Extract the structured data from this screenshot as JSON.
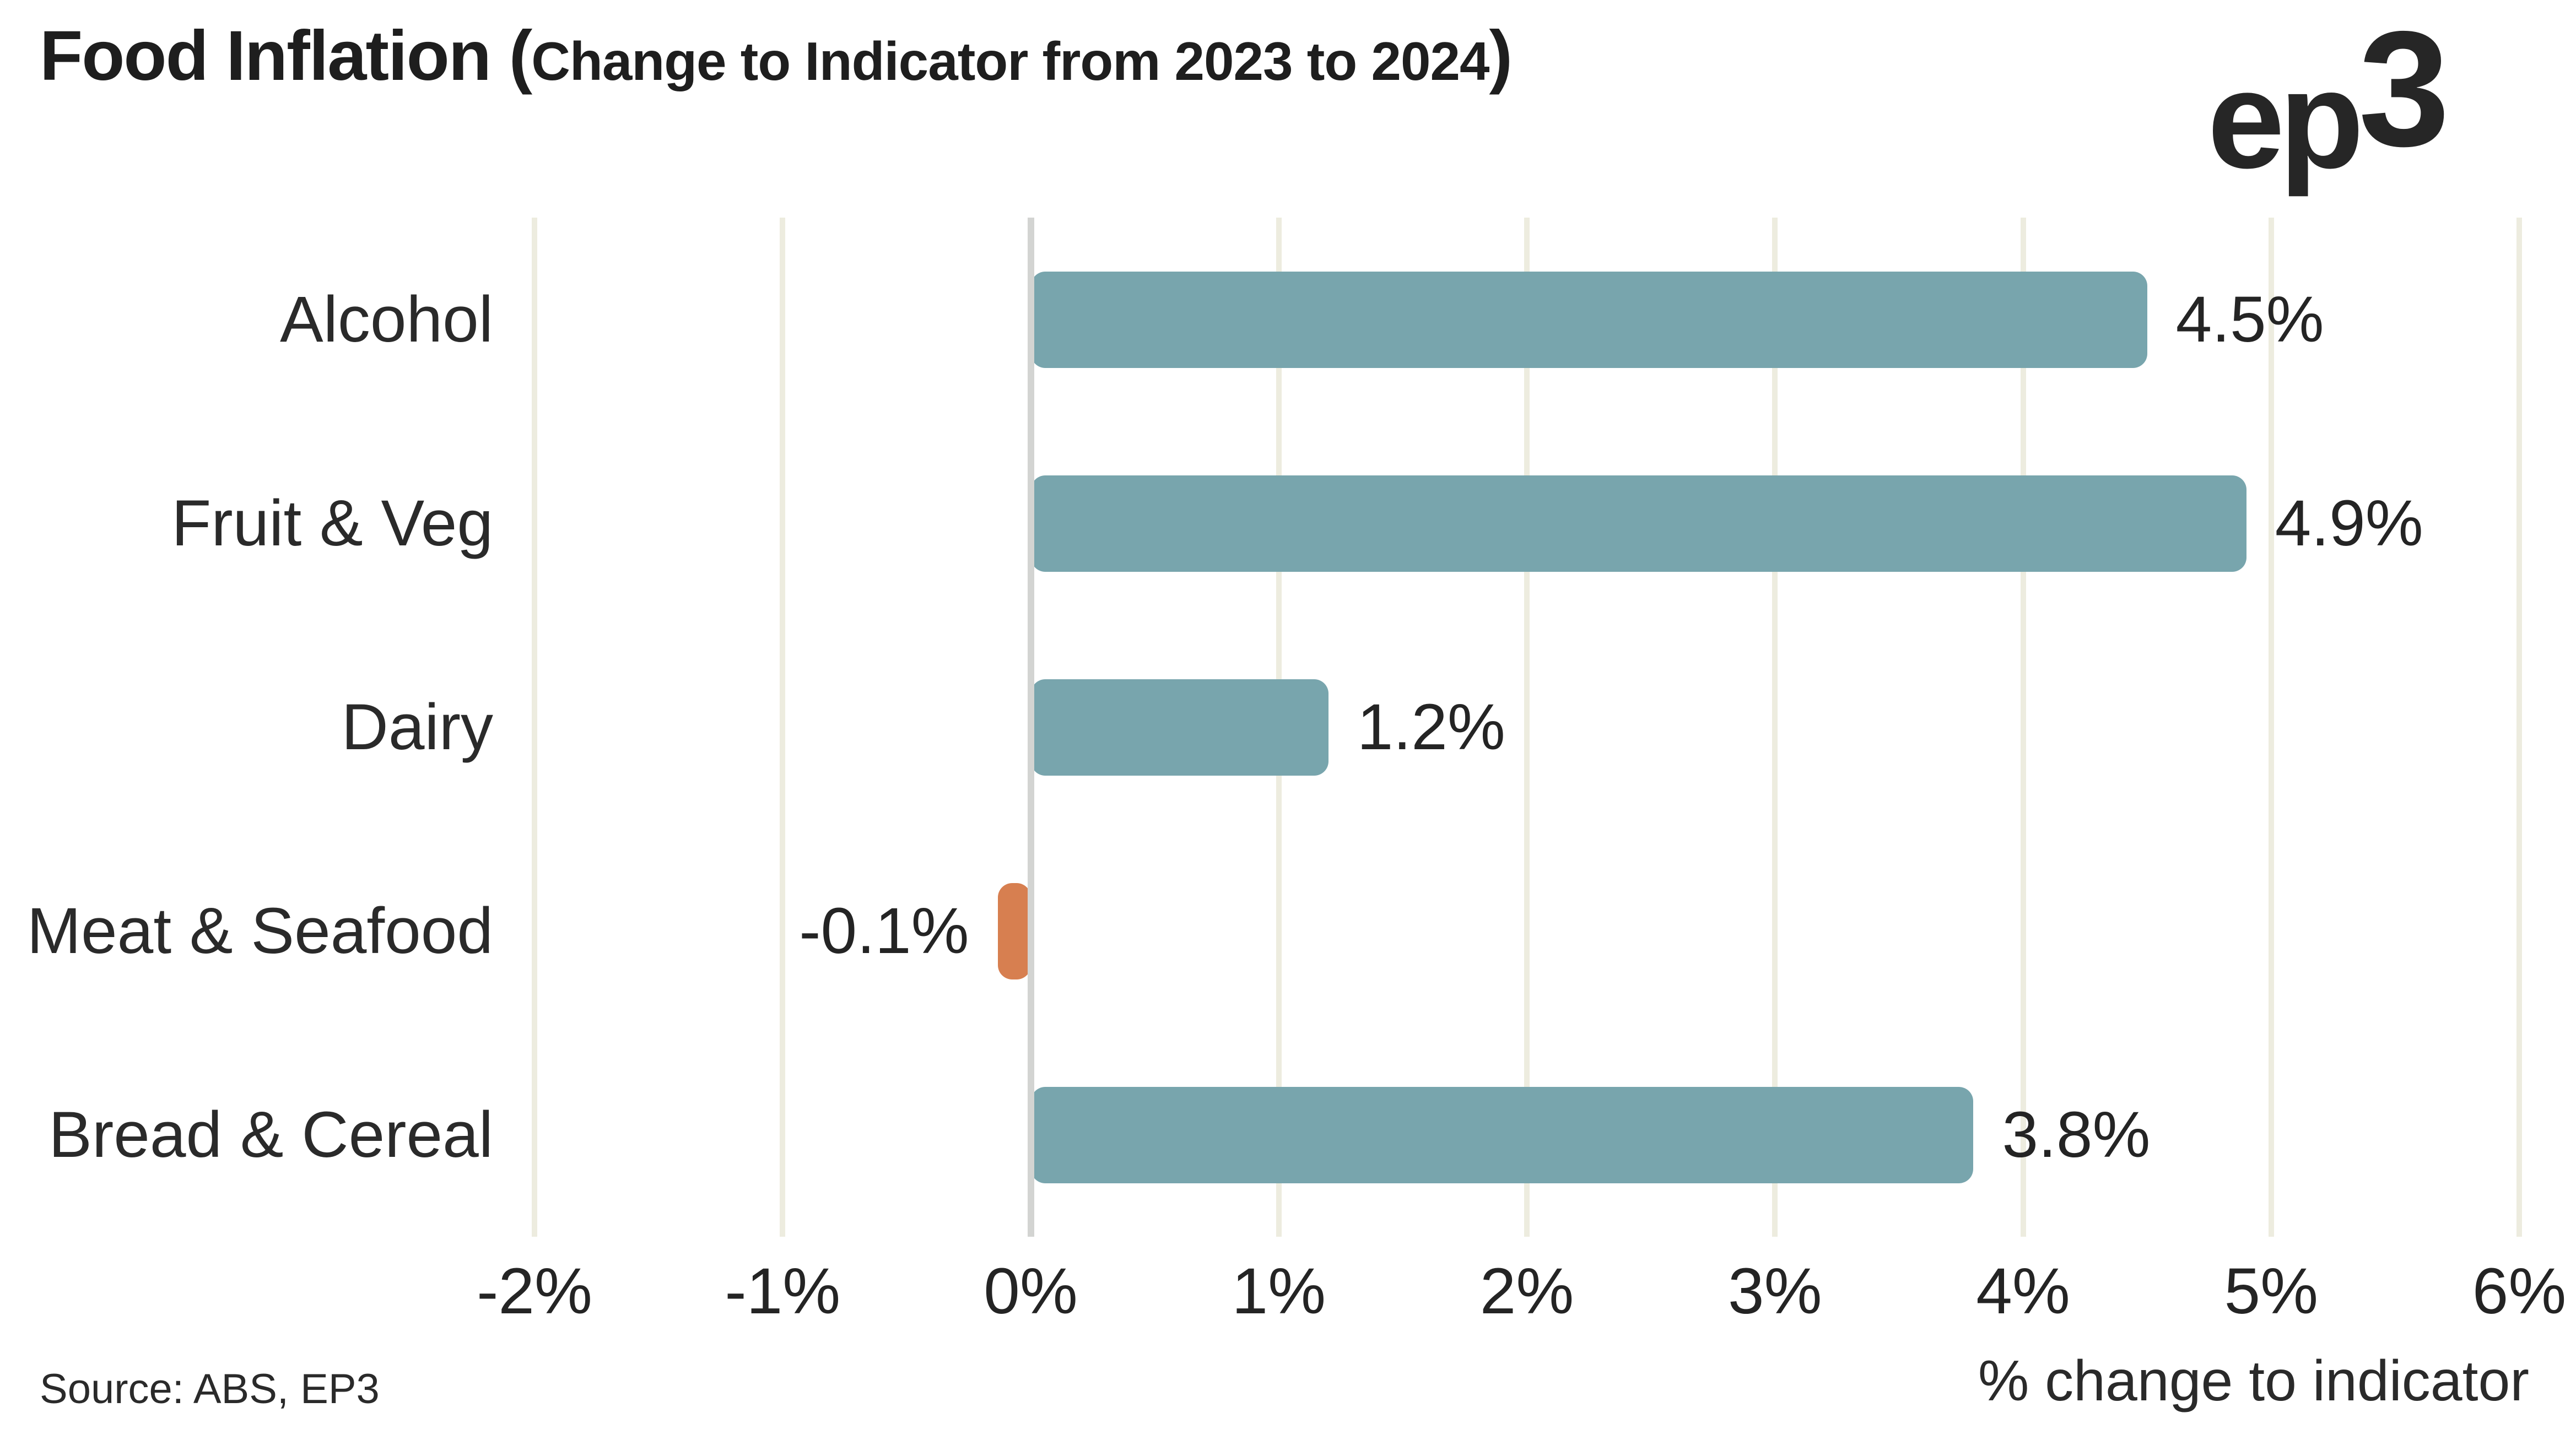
{
  "header": {
    "title_main": "Food Inflation (",
    "title_sub": "Change to Indicator from 2023 to 2024",
    "title_close": ")",
    "logo_ep": "ep",
    "logo_3": "3"
  },
  "chart_data": {
    "type": "bar",
    "orientation": "horizontal",
    "title": "Food Inflation (Change to Indicator from 2023 to 2024)",
    "categories": [
      "Alcohol",
      "Fruit & Veg",
      "Dairy",
      "Meat & Seafood",
      "Bread & Cereal"
    ],
    "values": [
      4.5,
      4.9,
      1.2,
      -0.1,
      3.8
    ],
    "value_labels": [
      "4.5%",
      "4.9%",
      "1.2%",
      "-0.1%",
      "3.8%"
    ],
    "xlabel": "% change to indicator",
    "ylabel": "",
    "xlim": [
      -2,
      6
    ],
    "xticks": [
      -2,
      -1,
      0,
      1,
      2,
      3,
      4,
      5,
      6
    ],
    "xtick_labels": [
      "-2%",
      "-1%",
      "0%",
      "1%",
      "2%",
      "3%",
      "4%",
      "5%",
      "6%"
    ],
    "grid": "vertical-gridlines-on",
    "legend": "none",
    "colors": {
      "positive_bar": "#78a5ad",
      "negative_bar": "#d77f50",
      "gridline": "#edecdf",
      "zero_line": "#d3d4d2",
      "text": "#242424"
    }
  },
  "footer": {
    "source": "Source: ABS, EP3"
  }
}
